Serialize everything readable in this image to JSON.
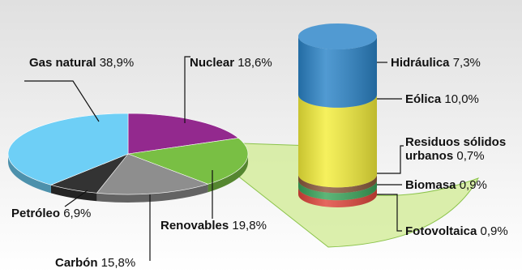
{
  "chart_data": [
    {
      "type": "pie",
      "slices": [
        {
          "name": "Gas natural",
          "value_label": "38,9%",
          "value": 38.9,
          "color": "#6ecff6"
        },
        {
          "name": "Nuclear",
          "value_label": "18,6%",
          "value": 18.6,
          "color": "#93298e"
        },
        {
          "name": "Renovables",
          "value_label": "19,8%",
          "value": 19.8,
          "color": "#79bf44"
        },
        {
          "name": "Carbón",
          "value_label": "15,8%",
          "value": 15.8,
          "color": "#8e8e8e"
        },
        {
          "name": "Petróleo",
          "value_label": "6,9%",
          "value": 6.9,
          "color": "#333333"
        }
      ]
    },
    {
      "type": "bar",
      "stacked": true,
      "parent_slice": "Renovables",
      "segments": [
        {
          "name": "Hidráulica",
          "value_label": "7,3%",
          "value": 7.3,
          "color": "#2b84c8"
        },
        {
          "name": "Eólica",
          "value_label": "10,0%",
          "value": 10.0,
          "color": "#f4ee3a"
        },
        {
          "name": "Residuos sólidos",
          "name_line2": "urbanos",
          "value_label": "0,7%",
          "value": 0.7,
          "color": "#8a5a3c"
        },
        {
          "name": "Biomasa",
          "value_label": "0,9%",
          "value": 0.9,
          "color": "#3aa55a"
        },
        {
          "name": "Fotovoltaica",
          "value_label": "0,9%",
          "value": 0.9,
          "color": "#e0453b"
        }
      ]
    }
  ],
  "colors": {
    "background_gradient": "#e6e6e6",
    "fan_fill": "#d5ec9e",
    "fan_stroke": "#8bc34a"
  }
}
